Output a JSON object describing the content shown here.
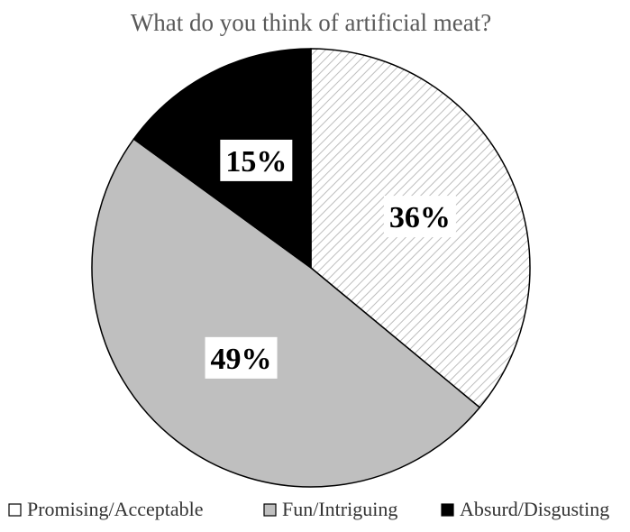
{
  "chart_data": {
    "type": "pie",
    "title": "What do you think of artificial meat?",
    "categories": [
      "Promising/Acceptable",
      "Fun/Intriguing",
      "Absurd/Disgusting"
    ],
    "values": [
      36,
      49,
      15
    ],
    "labels": [
      "36%",
      "49%",
      "15%"
    ],
    "unit": "%",
    "fills": [
      "hatched",
      "#bfbfbf",
      "#000000"
    ],
    "legend_position": "bottom",
    "start_angle_deg": 0,
    "direction": "clockwise"
  }
}
